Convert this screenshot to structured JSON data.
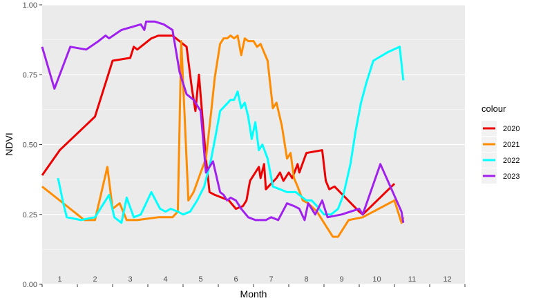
{
  "chart_data": {
    "type": "line",
    "xlabel": "Month",
    "ylabel": "NDVI",
    "ylim": [
      0,
      1
    ],
    "xlim": [
      0.5,
      12.5
    ],
    "yticks": [
      0.0,
      0.25,
      0.5,
      0.75,
      1.0
    ],
    "ytick_labels": [
      "0.00",
      "0.25",
      "0.50",
      "0.75",
      "1.00"
    ],
    "month_labels": [
      "1",
      "2",
      "3",
      "4",
      "5",
      "6",
      "7",
      "8",
      "9",
      "10",
      "11",
      "12"
    ],
    "grid": true,
    "legend_title": "colour",
    "legend_position": "right",
    "series": [
      {
        "name": "2020",
        "color": "#ee0000",
        "points": [
          [
            0.5,
            0.39
          ],
          [
            1.0,
            0.48
          ],
          [
            1.5,
            0.54
          ],
          [
            2.0,
            0.6
          ],
          [
            2.5,
            0.8
          ],
          [
            3.0,
            0.81
          ],
          [
            3.1,
            0.85
          ],
          [
            3.2,
            0.84
          ],
          [
            3.6,
            0.88
          ],
          [
            3.8,
            0.89
          ],
          [
            4.2,
            0.89
          ],
          [
            4.6,
            0.85
          ],
          [
            4.75,
            0.7
          ],
          [
            4.85,
            0.62
          ],
          [
            4.95,
            0.75
          ],
          [
            5.05,
            0.6
          ],
          [
            5.15,
            0.45
          ],
          [
            5.25,
            0.33
          ],
          [
            5.4,
            0.32
          ],
          [
            5.6,
            0.31
          ],
          [
            5.8,
            0.3
          ],
          [
            6.0,
            0.27
          ],
          [
            6.2,
            0.28
          ],
          [
            6.3,
            0.3
          ],
          [
            6.4,
            0.37
          ],
          [
            6.55,
            0.4
          ],
          [
            6.65,
            0.42
          ],
          [
            6.7,
            0.38
          ],
          [
            6.8,
            0.43
          ],
          [
            6.85,
            0.34
          ],
          [
            7.0,
            0.36
          ],
          [
            7.15,
            0.38
          ],
          [
            7.25,
            0.4
          ],
          [
            7.35,
            0.37
          ],
          [
            7.5,
            0.4
          ],
          [
            7.6,
            0.38
          ],
          [
            7.75,
            0.43
          ],
          [
            7.8,
            0.4
          ],
          [
            8.0,
            0.47
          ],
          [
            8.45,
            0.48
          ],
          [
            8.55,
            0.37
          ],
          [
            8.65,
            0.34
          ],
          [
            8.8,
            0.35
          ],
          [
            9.5,
            0.26
          ],
          [
            9.6,
            0.25
          ],
          [
            10.5,
            0.36
          ]
        ]
      },
      {
        "name": "2021",
        "color": "#ff8c00",
        "points": [
          [
            0.5,
            0.35
          ],
          [
            1.0,
            0.3
          ],
          [
            1.7,
            0.23
          ],
          [
            2.0,
            0.23
          ],
          [
            2.35,
            0.42
          ],
          [
            2.5,
            0.27
          ],
          [
            2.7,
            0.29
          ],
          [
            2.9,
            0.23
          ],
          [
            3.2,
            0.23
          ],
          [
            3.8,
            0.24
          ],
          [
            4.2,
            0.24
          ],
          [
            4.35,
            0.26
          ],
          [
            4.45,
            0.87
          ],
          [
            4.65,
            0.3
          ],
          [
            4.8,
            0.33
          ],
          [
            5.0,
            0.4
          ],
          [
            5.15,
            0.45
          ],
          [
            5.3,
            0.62
          ],
          [
            5.4,
            0.74
          ],
          [
            5.55,
            0.86
          ],
          [
            5.65,
            0.88
          ],
          [
            5.75,
            0.88
          ],
          [
            5.85,
            0.89
          ],
          [
            5.95,
            0.88
          ],
          [
            6.05,
            0.89
          ],
          [
            6.15,
            0.82
          ],
          [
            6.25,
            0.88
          ],
          [
            6.35,
            0.87
          ],
          [
            6.5,
            0.87
          ],
          [
            6.6,
            0.85
          ],
          [
            6.7,
            0.86
          ],
          [
            6.8,
            0.83
          ],
          [
            6.9,
            0.8
          ],
          [
            7.05,
            0.63
          ],
          [
            7.15,
            0.65
          ],
          [
            7.3,
            0.57
          ],
          [
            7.45,
            0.45
          ],
          [
            7.55,
            0.47
          ],
          [
            7.65,
            0.38
          ],
          [
            7.75,
            0.35
          ],
          [
            7.9,
            0.3
          ],
          [
            8.05,
            0.29
          ],
          [
            8.3,
            0.26
          ],
          [
            8.6,
            0.2
          ],
          [
            8.75,
            0.17
          ],
          [
            8.9,
            0.17
          ],
          [
            9.2,
            0.23
          ],
          [
            9.6,
            0.24
          ],
          [
            10.5,
            0.3
          ],
          [
            10.7,
            0.22
          ],
          [
            10.75,
            0.24
          ]
        ]
      },
      {
        "name": "2022",
        "color": "#00ffff",
        "points": [
          [
            0.95,
            0.38
          ],
          [
            1.1,
            0.29
          ],
          [
            1.2,
            0.24
          ],
          [
            1.6,
            0.23
          ],
          [
            2.0,
            0.24
          ],
          [
            2.4,
            0.32
          ],
          [
            2.55,
            0.24
          ],
          [
            2.75,
            0.22
          ],
          [
            2.9,
            0.31
          ],
          [
            3.1,
            0.24
          ],
          [
            3.3,
            0.25
          ],
          [
            3.6,
            0.33
          ],
          [
            3.85,
            0.27
          ],
          [
            4.0,
            0.26
          ],
          [
            4.15,
            0.27
          ],
          [
            4.35,
            0.26
          ],
          [
            4.5,
            0.25
          ],
          [
            4.7,
            0.26
          ],
          [
            4.9,
            0.3
          ],
          [
            5.1,
            0.35
          ],
          [
            5.3,
            0.45
          ],
          [
            5.45,
            0.55
          ],
          [
            5.55,
            0.62
          ],
          [
            5.7,
            0.64
          ],
          [
            5.85,
            0.66
          ],
          [
            5.95,
            0.66
          ],
          [
            6.05,
            0.69
          ],
          [
            6.15,
            0.63
          ],
          [
            6.25,
            0.65
          ],
          [
            6.35,
            0.6
          ],
          [
            6.45,
            0.52
          ],
          [
            6.55,
            0.58
          ],
          [
            6.65,
            0.48
          ],
          [
            6.75,
            0.5
          ],
          [
            6.9,
            0.45
          ],
          [
            7.05,
            0.35
          ],
          [
            7.25,
            0.34
          ],
          [
            7.45,
            0.33
          ],
          [
            7.7,
            0.33
          ],
          [
            7.9,
            0.31
          ],
          [
            8.0,
            0.3
          ],
          [
            8.15,
            0.3
          ],
          [
            8.3,
            0.28
          ],
          [
            8.5,
            0.25
          ],
          [
            8.7,
            0.25
          ],
          [
            8.9,
            0.27
          ],
          [
            9.05,
            0.32
          ],
          [
            9.25,
            0.43
          ],
          [
            9.4,
            0.55
          ],
          [
            9.55,
            0.65
          ],
          [
            9.7,
            0.72
          ],
          [
            9.9,
            0.8
          ],
          [
            10.3,
            0.83
          ],
          [
            10.65,
            0.85
          ],
          [
            10.75,
            0.73
          ]
        ]
      },
      {
        "name": "2023",
        "color": "#a020f0",
        "points": [
          [
            0.5,
            0.85
          ],
          [
            0.85,
            0.7
          ],
          [
            1.3,
            0.85
          ],
          [
            1.75,
            0.84
          ],
          [
            2.1,
            0.87
          ],
          [
            2.3,
            0.89
          ],
          [
            2.4,
            0.88
          ],
          [
            2.75,
            0.91
          ],
          [
            3.3,
            0.93
          ],
          [
            3.4,
            0.91
          ],
          [
            3.45,
            0.94
          ],
          [
            3.7,
            0.94
          ],
          [
            3.95,
            0.93
          ],
          [
            4.2,
            0.91
          ],
          [
            4.4,
            0.76
          ],
          [
            4.6,
            0.68
          ],
          [
            4.8,
            0.66
          ],
          [
            5.0,
            0.62
          ],
          [
            5.15,
            0.4
          ],
          [
            5.35,
            0.44
          ],
          [
            5.55,
            0.33
          ],
          [
            5.65,
            0.32
          ],
          [
            5.75,
            0.3
          ],
          [
            5.85,
            0.31
          ],
          [
            6.0,
            0.3
          ],
          [
            6.15,
            0.27
          ],
          [
            6.35,
            0.24
          ],
          [
            6.55,
            0.23
          ],
          [
            6.85,
            0.23
          ],
          [
            7.0,
            0.24
          ],
          [
            7.2,
            0.23
          ],
          [
            7.45,
            0.29
          ],
          [
            7.65,
            0.28
          ],
          [
            7.8,
            0.27
          ],
          [
            7.95,
            0.23
          ],
          [
            8.05,
            0.29
          ],
          [
            8.15,
            0.27
          ],
          [
            8.25,
            0.25
          ],
          [
            8.45,
            0.3
          ],
          [
            8.6,
            0.24
          ],
          [
            9.0,
            0.25
          ],
          [
            9.5,
            0.27
          ],
          [
            9.6,
            0.25
          ],
          [
            10.1,
            0.43
          ],
          [
            10.7,
            0.26
          ],
          [
            10.75,
            0.22
          ]
        ]
      }
    ]
  }
}
